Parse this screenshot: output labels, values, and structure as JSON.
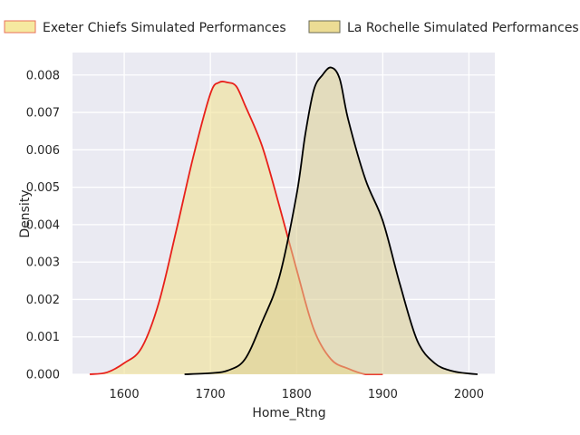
{
  "chart_data": {
    "type": "area",
    "xlabel": "Home_Rtng",
    "ylabel": "Density",
    "xlim": [
      1540,
      2030
    ],
    "ylim": [
      0,
      0.0086
    ],
    "x_ticks": [
      1600,
      1700,
      1800,
      1900,
      2000
    ],
    "y_ticks": [
      0.0,
      0.001,
      0.002,
      0.003,
      0.004,
      0.005,
      0.006,
      0.007,
      0.008
    ],
    "y_tick_labels": [
      "0.000",
      "0.001",
      "0.002",
      "0.003",
      "0.004",
      "0.005",
      "0.006",
      "0.007",
      "0.008"
    ],
    "grid": true,
    "legend_position": "top",
    "background": "#eaeaf2",
    "series": [
      {
        "name": "Exeter Chiefs Simulated Performances",
        "line_color": "#e8201a",
        "fill_color": "#f0e08a",
        "fill_opacity": 0.55,
        "x": [
          1560,
          1580,
          1600,
          1620,
          1640,
          1660,
          1680,
          1700,
          1710,
          1720,
          1730,
          1740,
          1760,
          1780,
          1800,
          1820,
          1840,
          1860,
          1880,
          1900
        ],
        "y": [
          0.0,
          5e-05,
          0.0003,
          0.0007,
          0.0019,
          0.0038,
          0.0058,
          0.0075,
          0.0078,
          0.0078,
          0.0077,
          0.0072,
          0.0061,
          0.0045,
          0.0028,
          0.0012,
          0.0004,
          0.00015,
          0.0,
          0.0
        ]
      },
      {
        "name": "La Rochelle Simulated Performances",
        "line_color": "#000000",
        "fill_color": "#dccf92",
        "fill_opacity": 0.55,
        "x": [
          1670,
          1700,
          1720,
          1740,
          1760,
          1780,
          1800,
          1810,
          1820,
          1830,
          1840,
          1850,
          1860,
          1880,
          1900,
          1920,
          1940,
          1960,
          1980,
          2000,
          2010
        ],
        "y": [
          0.0,
          3e-05,
          0.0001,
          0.0004,
          0.0014,
          0.0026,
          0.0048,
          0.0064,
          0.0076,
          0.008,
          0.0082,
          0.0079,
          0.0068,
          0.0052,
          0.0041,
          0.0024,
          0.0009,
          0.0003,
          9e-05,
          2e-05,
          0.0
        ]
      }
    ]
  }
}
